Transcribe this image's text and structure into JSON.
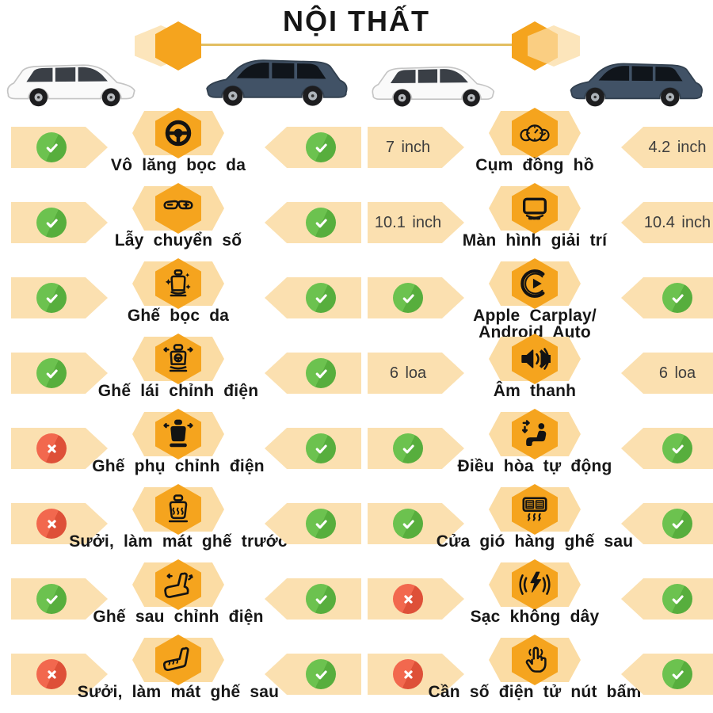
{
  "title": "NỘI THẤT",
  "colors": {
    "accent_orange": "#F5A41E",
    "hex_back": "#FBDCA4",
    "banner_cream": "#FBE0B0",
    "check_green": "#6CC24F",
    "check_green_dark": "#57AE3D",
    "cross_red": "#F2684E",
    "cross_red_dark": "#DE5038",
    "underline_gold": "#E2BE62",
    "text_dark": "#161616",
    "value_text": "#3E3E3E",
    "car_white": "#FAFAFA",
    "car_blue": "#415266"
  },
  "cars": [
    {
      "name": "car-white-left-column",
      "color": "white",
      "facing": "right"
    },
    {
      "name": "car-blue-left-column",
      "color": "blue",
      "facing": "left"
    },
    {
      "name": "car-white-right-column",
      "color": "white",
      "facing": "right"
    },
    {
      "name": "car-blue-right-column",
      "color": "blue",
      "facing": "left"
    }
  ],
  "columns": [
    {
      "rows": [
        {
          "label": "Vô lăng bọc da",
          "icon": "steering-wheel",
          "left": {
            "type": "check"
          },
          "right": {
            "type": "check"
          }
        },
        {
          "label": "Lẫy chuyển số",
          "icon": "paddle-shifter",
          "left": {
            "type": "check"
          },
          "right": {
            "type": "check"
          }
        },
        {
          "label": "Ghế bọc da",
          "icon": "leather-seat",
          "left": {
            "type": "check"
          },
          "right": {
            "type": "check"
          }
        },
        {
          "label": "Ghế lái chỉnh điện",
          "icon": "power-driver-seat",
          "left": {
            "type": "check"
          },
          "right": {
            "type": "check"
          }
        },
        {
          "label": "Ghế phụ chỉnh điện",
          "icon": "power-passenger-seat",
          "left": {
            "type": "cross"
          },
          "right": {
            "type": "check"
          }
        },
        {
          "label": "Sưởi, làm mát ghế trước",
          "icon": "heated-front-seat",
          "left": {
            "type": "cross"
          },
          "right": {
            "type": "check"
          }
        },
        {
          "label": "Ghế sau chỉnh điện",
          "icon": "power-rear-seat",
          "left": {
            "type": "check"
          },
          "right": {
            "type": "check"
          }
        },
        {
          "label": "Sưởi, làm mát ghế sau",
          "icon": "heated-rear-seat",
          "left": {
            "type": "cross"
          },
          "right": {
            "type": "check"
          }
        }
      ]
    },
    {
      "rows": [
        {
          "label": "Cụm đồng hồ",
          "icon": "gauge-cluster",
          "left": {
            "type": "text",
            "value": "7 inch"
          },
          "right": {
            "type": "text",
            "value": "4.2 inch"
          }
        },
        {
          "label": "Màn hình giải trí",
          "icon": "infotainment-screen",
          "left": {
            "type": "text",
            "value": "10.1 inch"
          },
          "right": {
            "type": "text",
            "value": "10.4 inch"
          }
        },
        {
          "label": "Apple Carplay/\nAndroid Auto",
          "icon": "carplay",
          "left": {
            "type": "check"
          },
          "right": {
            "type": "check"
          }
        },
        {
          "label": "Âm thanh",
          "icon": "speaker",
          "left": {
            "type": "text",
            "value": "6 loa"
          },
          "right": {
            "type": "text",
            "value": "6 loa"
          }
        },
        {
          "label": "Điều hòa tự động",
          "icon": "auto-climate",
          "left": {
            "type": "check"
          },
          "right": {
            "type": "check"
          }
        },
        {
          "label": "Cửa gió hàng ghế sau",
          "icon": "rear-air-vent",
          "left": {
            "type": "check"
          },
          "right": {
            "type": "check"
          }
        },
        {
          "label": "Sạc không dây",
          "icon": "wireless-charging",
          "left": {
            "type": "cross"
          },
          "right": {
            "type": "check"
          }
        },
        {
          "label": "Cần số điện tử nút bấm",
          "icon": "push-button-shifter",
          "left": {
            "type": "cross"
          },
          "right": {
            "type": "check"
          }
        }
      ]
    }
  ]
}
